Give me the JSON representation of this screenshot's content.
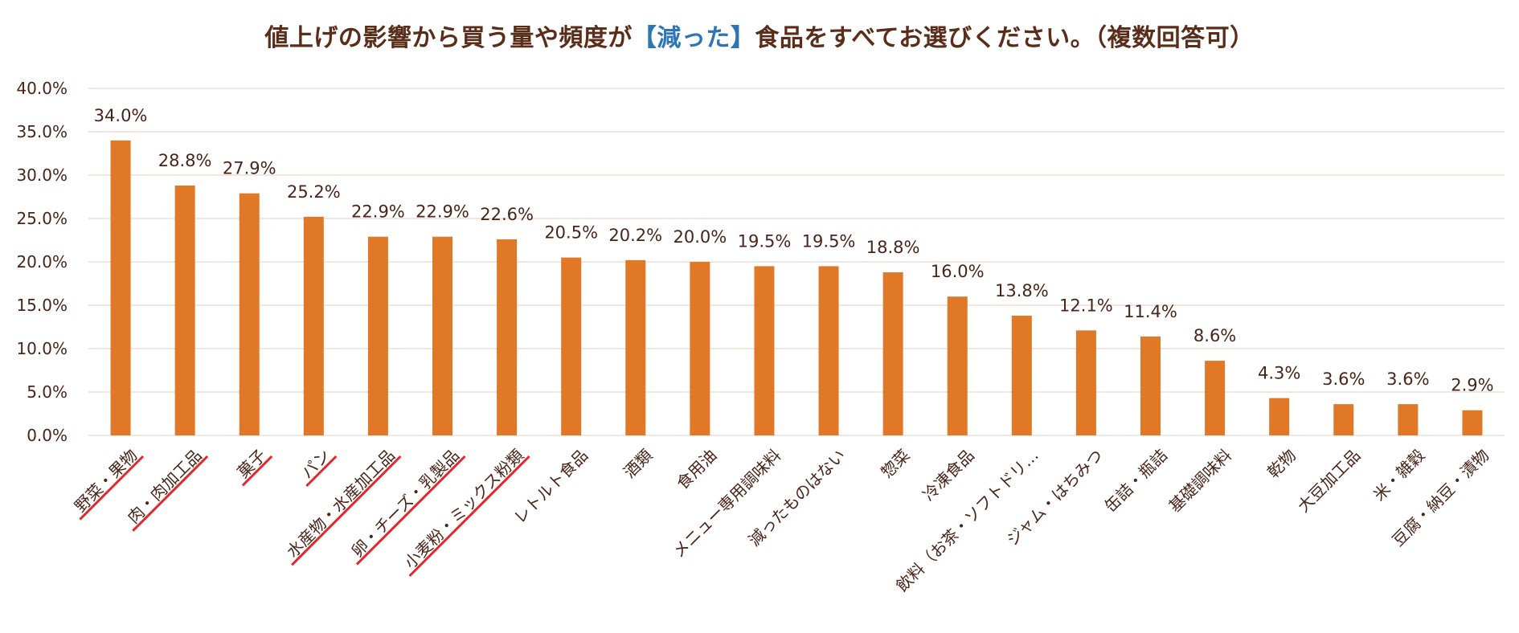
{
  "title": {
    "before": "値上げの影響から買う量や頻度が",
    "highlight": "【減った】",
    "after": "食品をすべてお選びください。（複数回答可）"
  },
  "colors": {
    "bar": "#e07828",
    "grid": "#ecd8cc",
    "text": "#4a2418",
    "title": "#5a2d1a",
    "highlight": "#2e75b6",
    "underline": "#e8262a"
  },
  "chart_data": {
    "type": "bar",
    "categories": [
      "野菜・果物",
      "肉・肉加工品",
      "菓子",
      "パン",
      "水産物・水産加工品",
      "卵・チーズ・乳製品",
      "小麦粉・ミックス粉類",
      "レトルト食品",
      "酒類",
      "食用油",
      "メニュー専用調味料",
      "減ったものはない",
      "惣菜",
      "冷凍食品",
      "飲料（お茶・ソフトドリ…",
      "ジャム・はちみつ",
      "缶詰・瓶詰",
      "基礎調味料",
      "乾物",
      "大豆加工品",
      "米・雑穀",
      "豆腐・納豆・漬物"
    ],
    "values": [
      34.0,
      28.8,
      27.9,
      25.2,
      22.9,
      22.9,
      22.6,
      20.5,
      20.2,
      20.0,
      19.5,
      19.5,
      18.8,
      16.0,
      13.8,
      12.1,
      11.4,
      8.6,
      4.3,
      3.6,
      3.6,
      2.9
    ],
    "value_labels": [
      "34.0%",
      "28.8%",
      "27.9%",
      "25.2%",
      "22.9%",
      "22.9%",
      "22.6%",
      "20.5%",
      "20.2%",
      "20.0%",
      "19.5%",
      "19.5%",
      "18.8%",
      "16.0%",
      "13.8%",
      "12.1%",
      "11.4%",
      "8.6%",
      "4.3%",
      "3.6%",
      "3.6%",
      "2.9%"
    ],
    "y_ticks": [
      "0.0%",
      "5.0%",
      "10.0%",
      "15.0%",
      "20.0%",
      "25.0%",
      "30.0%",
      "35.0%",
      "40.0%"
    ],
    "ylim": [
      0,
      40
    ],
    "grid": true,
    "underlined_categories": [
      "野菜・果物",
      "肉・肉加工品",
      "菓子",
      "パン",
      "水産物・水産加工品",
      "卵・チーズ・乳製品",
      "小麦粉・ミックス粉類"
    ]
  }
}
